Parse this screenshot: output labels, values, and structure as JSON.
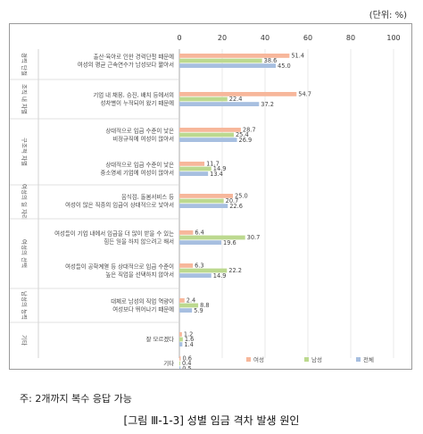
{
  "unit_label": "(단위: %)",
  "note": "주: 2개까지 복수 응답 가능",
  "caption": "[그림 Ⅲ-1-3] 성별 임금 격차 발생 원인",
  "chart_data": {
    "type": "bar",
    "orientation": "horizontal",
    "xlim": [
      0,
      100
    ],
    "xticks": [
      0,
      20,
      40,
      60,
      80,
      100
    ],
    "legend": [
      "여성",
      "남성",
      "전체"
    ],
    "legend_position": "bottom-right",
    "colors": {
      "여성": "#f7b79b",
      "남성": "#bcd98f",
      "전체": "#a7bfe0"
    },
    "groups": [
      {
        "name": "경력 단절",
        "items": [
          0
        ]
      },
      {
        "name": "조직 내 차별",
        "items": [
          1
        ]
      },
      {
        "name": "구조적 차별",
        "items": [
          2,
          3
        ]
      },
      {
        "name": "여성의 일 자리",
        "items": [
          4
        ]
      },
      {
        "name": "여성의 선택",
        "items": [
          5,
          6
        ]
      },
      {
        "name": "남성의 능력",
        "items": [
          7
        ]
      },
      {
        "name": "기타",
        "items": [
          8,
          9
        ]
      }
    ],
    "categories": [
      [
        "출산·육아로 인한 경력단절 때문에",
        "여성의 평균 근속연수가 남성보다 짧아서"
      ],
      [
        "기업 내 채용, 승진, 배치 등에서의",
        "성차별이 누적되어 왔기 때문에"
      ],
      [
        "상대적으로 임금 수준이 낮은",
        "비정규직에 여성이 많아서"
      ],
      [
        "상대적으로 임금 수준이 낮은",
        "중소영세 기업에 여성이 많아서"
      ],
      [
        "음식점, 돌봄서비스 등",
        "여성이 많은 직종의 임금이 상대적으로 낮아서"
      ],
      [
        "여성들이 기업 내에서 임금을 더 많이 받을 수 있는",
        "힘든 일을 하지 않으려고 해서"
      ],
      [
        "여성들이 공학계열 등 상대적으로 임금 수준이",
        "높은 직업을 선택하지 않아서"
      ],
      [
        "대체로 남성의 직업 역량이",
        "여성보다 뛰어나기 때문에"
      ],
      [
        "잘 모르겠다"
      ],
      [
        "기타"
      ]
    ],
    "series": [
      {
        "name": "여성",
        "values": [
          51.4,
          54.7,
          28.7,
          11.7,
          25.0,
          6.4,
          6.3,
          2.4,
          1.2,
          0.6
        ]
      },
      {
        "name": "남성",
        "values": [
          38.6,
          22.4,
          25.4,
          14.9,
          20.7,
          30.7,
          22.2,
          8.8,
          1.6,
          0.4
        ]
      },
      {
        "name": "전체",
        "values": [
          45.0,
          37.2,
          26.9,
          13.4,
          22.6,
          19.6,
          14.9,
          5.9,
          1.4,
          0.5
        ]
      }
    ],
    "value_labels": [
      [
        "51.4",
        "54.7",
        "28.7",
        "11.7",
        "25.0",
        "6.4",
        "6.3",
        "2.4",
        "1.2",
        "0.6"
      ],
      [
        "38.6",
        "22.4",
        "25.4",
        "14.9",
        "20.7",
        "30.7",
        "22.2",
        "8.8",
        "1.6",
        "0.4"
      ],
      [
        "45.0",
        "37.2",
        "26.9",
        "13.4",
        "22.6",
        "19.6",
        "14.9",
        "5.9",
        "1.4",
        "0.5"
      ]
    ]
  }
}
